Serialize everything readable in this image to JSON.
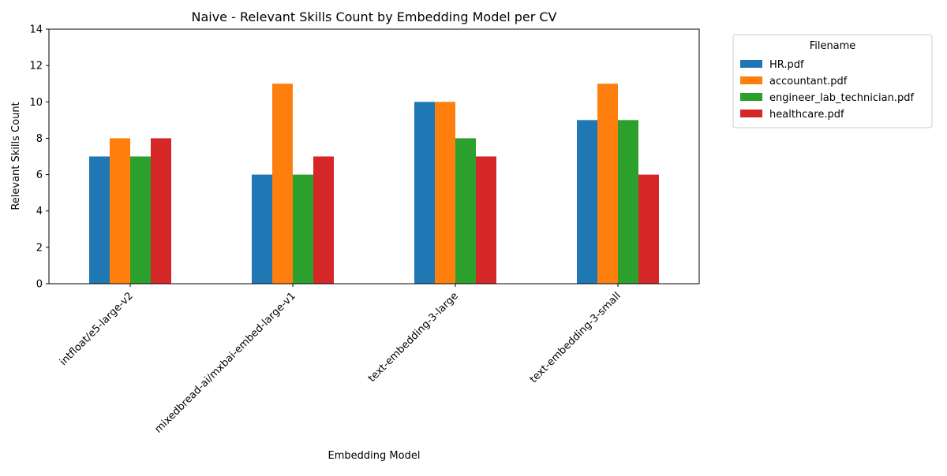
{
  "chart_data": {
    "type": "bar",
    "title": "Naive - Relevant Skills Count by Embedding Model per CV",
    "xlabel": "Embedding Model",
    "ylabel": "Relevant Skills Count",
    "ylim": [
      0,
      14
    ],
    "yticks": [
      0,
      2,
      4,
      6,
      8,
      10,
      12,
      14
    ],
    "categories": [
      "intfloat/e5-large-v2",
      "mixedbread-ai/mxbai-embed-large-v1",
      "text-embedding-3-large",
      "text-embedding-3-small"
    ],
    "series": [
      {
        "name": "HR.pdf",
        "color": "#1f77b4",
        "values": [
          7,
          6,
          10,
          9
        ]
      },
      {
        "name": "accountant.pdf",
        "color": "#ff7f0e",
        "values": [
          8,
          11,
          10,
          11
        ]
      },
      {
        "name": "engineer_lab_technician.pdf",
        "color": "#2ca02c",
        "values": [
          7,
          6,
          8,
          9
        ]
      },
      {
        "name": "healthcare.pdf",
        "color": "#d62728",
        "values": [
          8,
          7,
          7,
          6
        ]
      }
    ],
    "legend": {
      "title": "Filename",
      "placement": "outside-top-right"
    },
    "grid": false
  }
}
